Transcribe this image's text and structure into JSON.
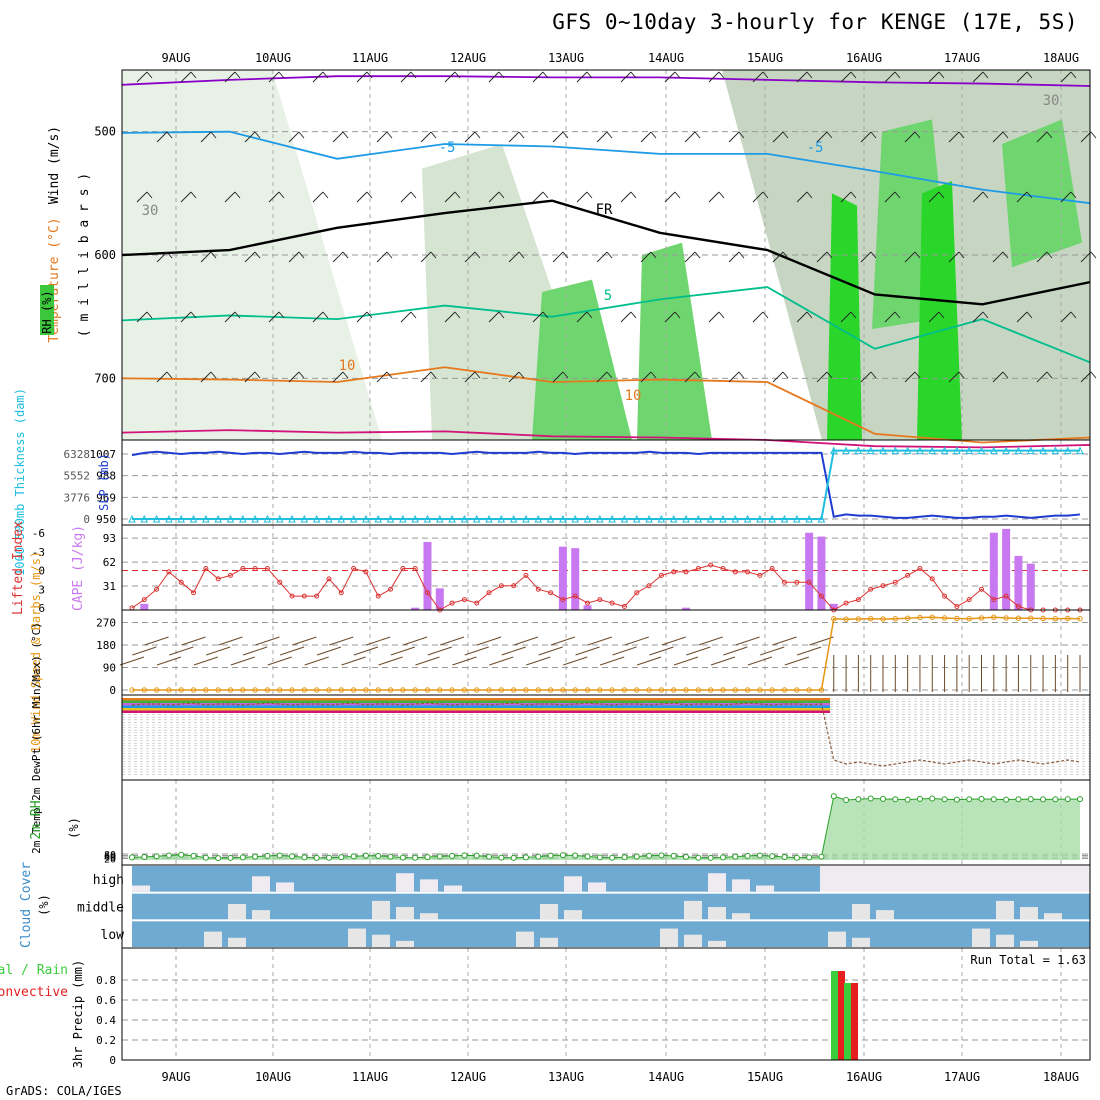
{
  "page": {
    "title": "GFS 0~10day 3-hourly for KENGE (17E, 5S)",
    "footer": "GrADS: COLA/IGES"
  },
  "colors": {
    "purple": "#8a00c8",
    "lightblue": "#1e9be6",
    "teal": "#00be8c",
    "orange": "#e6781e",
    "magenta": "#d2147a",
    "slp": "#1e3cd2",
    "thickness": "#1ebede",
    "lifted": "#dc3232",
    "cape": "#c878f0",
    "wind": "#e69614",
    "rh2m": "#28a028",
    "cloud": "#6eaad2",
    "cloudLight": "#f0ebf0",
    "precipGreen": "#3ccd3c",
    "precipRed": "#e61e1e"
  },
  "chart_data": [
    {
      "type": "contour",
      "panel": "upper-air",
      "x_ticks": [
        "9AUG",
        "10AUG",
        "11AUG",
        "12AUG",
        "13AUG",
        "14AUG",
        "15AUG",
        "16AUG",
        "17AUG",
        "18AUG"
      ],
      "ylabel_wind": "Wind (m/s)",
      "ylabel_temp": "Temperature (°C)",
      "ylabel_rh": "RH (%)",
      "ylabel_pressure": "( m i l l i b a r s )",
      "y_ticks": [
        500,
        600,
        700
      ],
      "ylim": [
        750,
        450
      ],
      "contour_labels": [
        "-5",
        "-5",
        "5",
        "10",
        "10",
        "FR",
        "30",
        "30"
      ],
      "series": [
        {
          "name": "",
          "values": [
            462,
            458,
            455,
            455,
            456,
            456,
            458,
            460,
            461,
            463
          ]
        },
        {
          "name": "",
          "values": [
            501,
            500,
            522,
            510,
            512,
            518,
            518,
            532,
            547,
            558
          ]
        },
        {
          "name": "",
          "values": [
            600,
            596,
            578,
            566,
            556,
            582,
            596,
            632,
            640,
            622
          ]
        },
        {
          "name": "",
          "values": [
            653,
            649,
            652,
            641,
            650,
            636,
            626,
            676,
            652,
            687
          ]
        },
        {
          "name": "",
          "values": [
            700,
            701,
            703,
            691,
            703,
            701,
            703,
            745,
            752,
            748
          ]
        },
        {
          "name": "",
          "values": [
            744,
            742,
            744,
            743,
            747,
            748,
            750,
            755,
            756,
            754
          ]
        }
      ]
    },
    {
      "type": "line",
      "panel": "slp-thickness",
      "ylabel_left": "1000-500mb Thickness (dam)",
      "ylabel_right": "SLP (mb)",
      "ticks_left": [
        "6328",
        "5552",
        "3776",
        "0"
      ],
      "ticks_right": [
        "1007",
        "988",
        "969",
        "950"
      ],
      "series": [
        {
          "name": "",
          "values": [
            1006,
            1008,
            1009,
            1008,
            1007,
            1008,
            1008,
            1009,
            1008,
            1007,
            1008,
            1008,
            1007,
            1008,
            1009,
            1008,
            1008,
            1008,
            1009,
            1008,
            1008,
            1007,
            1008,
            1008,
            1008,
            1008,
            1007,
            1008,
            1009,
            1008,
            1008,
            1008,
            1008,
            1009,
            1008,
            1008,
            1007,
            1008,
            1008,
            1008,
            1008,
            1008,
            1009,
            1008,
            1008,
            1008,
            1007,
            1008,
            1008,
            1008,
            1008,
            1008,
            1008,
            1008,
            1008,
            1008,
            1008,
            952,
            954,
            953,
            953,
            952,
            951,
            951,
            952,
            953,
            952,
            951,
            951,
            952,
            952,
            953,
            952,
            951,
            952,
            953,
            953,
            954
          ]
        },
        {
          "name": "",
          "values": [
            950,
            950,
            950,
            950,
            950,
            950,
            950,
            950,
            950,
            950,
            950,
            950,
            950,
            950,
            950,
            950,
            950,
            950,
            950,
            950,
            950,
            950,
            950,
            950,
            950,
            950,
            950,
            950,
            950,
            950,
            950,
            950,
            950,
            950,
            950,
            950,
            950,
            950,
            950,
            950,
            950,
            950,
            950,
            950,
            950,
            950,
            950,
            950,
            950,
            950,
            950,
            950,
            950,
            950,
            950,
            950,
            950,
            1010,
            1010,
            1010,
            1010,
            1010,
            1010,
            1010,
            1010,
            1010,
            1010,
            1010,
            1010,
            1010,
            1010,
            1010,
            1010,
            1010,
            1010,
            1010,
            1010,
            1010
          ]
        }
      ]
    },
    {
      "type": "bar",
      "panel": "cape-li",
      "ylabel_left": "Lifted Index",
      "ylabel_right": "CAPE (J/kg)",
      "ticks_left": [
        "-6",
        "-3",
        "0",
        "3",
        "6"
      ],
      "ticks_right": [
        "93",
        "62",
        "31"
      ],
      "series": [
        {
          "name": "",
          "values": [
            0,
            8,
            0,
            0,
            0,
            0,
            0,
            0,
            0,
            0,
            0,
            0,
            0,
            0,
            0,
            0,
            0,
            0,
            0,
            0,
            0,
            0,
            0,
            3,
            88,
            28,
            0,
            0,
            0,
            0,
            0,
            0,
            0,
            0,
            0,
            82,
            80,
            6,
            0,
            0,
            0,
            0,
            0,
            0,
            0,
            3,
            0,
            0,
            0,
            0,
            0,
            0,
            0,
            0,
            0,
            100,
            95,
            8,
            0,
            0,
            0,
            0,
            0,
            0,
            0,
            0,
            0,
            0,
            0,
            0,
            100,
            105,
            70,
            60,
            0,
            0,
            0,
            0
          ]
        },
        {
          "name": "",
          "values": [
            0.3,
            1.5,
            3,
            5.5,
            4,
            2.5,
            6,
            4.5,
            5,
            6,
            6,
            6,
            4,
            2,
            2,
            2,
            4.5,
            2.5,
            6,
            5.5,
            2,
            3,
            6,
            6,
            2.5,
            0,
            1,
            1.5,
            1,
            2.5,
            3.5,
            3.5,
            5,
            3,
            2.5,
            1.5,
            2,
            1,
            1.5,
            1,
            0.5,
            2.5,
            3.5,
            5,
            5.5,
            5.5,
            6,
            6.5,
            6,
            5.5,
            5.5,
            5,
            6,
            4,
            4,
            4,
            2,
            0,
            1,
            1.5,
            3,
            3.5,
            4,
            5,
            6,
            4.5,
            2,
            0.5,
            1.5,
            3,
            1.5,
            2,
            0.5,
            0,
            0,
            0,
            0,
            0
          ]
        }
      ]
    },
    {
      "type": "line",
      "panel": "wind10m",
      "ylabel": "10m Wind Speed & Barbs (m/s)",
      "ticks": [
        "270",
        "180",
        "90",
        "0"
      ],
      "series": [
        {
          "name": "",
          "values": [
            0,
            0,
            0,
            0,
            0,
            0,
            0,
            0,
            0,
            0,
            0,
            0,
            0,
            0,
            0,
            0,
            0,
            0,
            0,
            0,
            0,
            0,
            0,
            0,
            0,
            0,
            0,
            0,
            0,
            0,
            0,
            0,
            0,
            0,
            0,
            0,
            0,
            0,
            0,
            0,
            0,
            0,
            0,
            0,
            0,
            0,
            0,
            0,
            0,
            0,
            0,
            0,
            0,
            0,
            0,
            0,
            0,
            285,
            283,
            284,
            285,
            284,
            285,
            287,
            290,
            291,
            288,
            286,
            285,
            288,
            291,
            288,
            287,
            287,
            286,
            285,
            286,
            285
          ]
        }
      ]
    },
    {
      "type": "line",
      "panel": "temp2m",
      "ylabel": "2m Temp 2m DewPt (6hr Min/Max) (°C)",
      "series": [
        {
          "name": "",
          "values": [
            24,
            25,
            25,
            24,
            25,
            26,
            24,
            25,
            25,
            24,
            25,
            26,
            25,
            24,
            25,
            25,
            24,
            25,
            26,
            24,
            25,
            25,
            24,
            25,
            26,
            25,
            24,
            25,
            25,
            24,
            25,
            26,
            24,
            25,
            25,
            24,
            25,
            26,
            25,
            24,
            25,
            25,
            24,
            25,
            26,
            24,
            25,
            25,
            24,
            25,
            26,
            25,
            24,
            25,
            25,
            24,
            25,
            -40,
            -42,
            -41,
            -42,
            -43,
            -42,
            -41,
            -40,
            -41,
            -42,
            -41,
            -40,
            -41,
            -42,
            -41,
            -40,
            -41,
            -42,
            -41,
            -40,
            -41
          ]
        }
      ]
    },
    {
      "type": "area",
      "panel": "rh2m",
      "ylabel": "2m RH",
      "ylabel_unit": "(%)",
      "ticks": [
        "80",
        "60",
        "40",
        "20"
      ],
      "series": [
        {
          "name": "",
          "values": [
            35,
            40,
            50,
            60,
            70,
            55,
            30,
            25,
            28,
            35,
            45,
            55,
            60,
            50,
            35,
            28,
            30,
            38,
            48,
            58,
            55,
            45,
            32,
            30,
            38,
            48,
            55,
            62,
            58,
            45,
            32,
            28,
            35,
            45,
            58,
            65,
            60,
            48,
            35,
            30,
            36,
            46,
            56,
            62,
            55,
            42,
            30,
            28,
            35,
            45,
            55,
            60,
            52,
            40,
            30,
            35,
            45,
            850,
            800,
            810,
            820,
            815,
            810,
            805,
            815,
            820,
            810,
            805,
            810,
            815,
            810,
            805,
            810,
            812,
            808,
            810,
            812,
            811
          ]
        }
      ]
    },
    {
      "type": "bar",
      "panel": "cloud",
      "ylabel": "Cloud Cover",
      "ylabel_unit": "(%)",
      "labels": [
        "high",
        "middle",
        "low"
      ]
    },
    {
      "type": "bar",
      "panel": "precip",
      "ylabel": "3hr Precip (mm)",
      "ylabel_left": "Total / Rain",
      "ylabel_left2": "Convective",
      "ticks": [
        "0.8",
        "0.6",
        "0.4",
        "0.2",
        "0"
      ],
      "run_total": "Run Total = 1.63",
      "series": [
        {
          "name": "",
          "values": [
            0.89,
            0.89,
            0.77,
            0.77
          ]
        }
      ]
    }
  ]
}
